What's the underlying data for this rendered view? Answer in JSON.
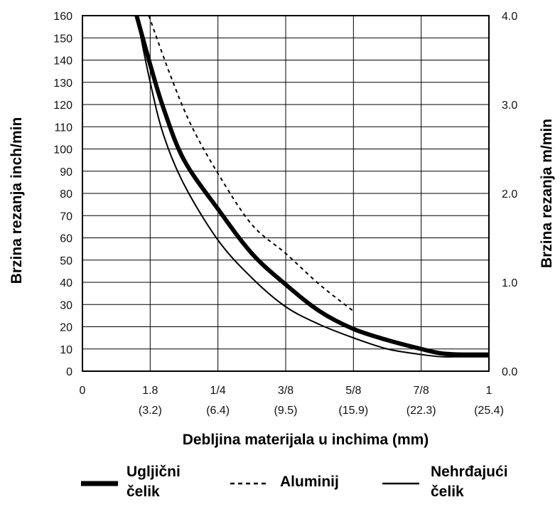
{
  "chart_data": {
    "type": "line",
    "xlabel": "Debljina materijala u inchima (mm)",
    "ylabel": "Brzina rezanja inch/min",
    "y2label": "Brzina rezanja m/min",
    "x_ticks": [
      {
        "top": "0",
        "bottom": ""
      },
      {
        "top": "1.8",
        "bottom": "(3.2)"
      },
      {
        "top": "1/4",
        "bottom": "(6.4)"
      },
      {
        "top": "3/8",
        "bottom": "(9.5)"
      },
      {
        "top": "5/8",
        "bottom": "(15.9)"
      },
      {
        "top": "7/8",
        "bottom": "(22.3)"
      },
      {
        "top": "1",
        "bottom": "(25.4)"
      }
    ],
    "ylim": [
      0,
      160
    ],
    "y_ticks": [
      "0",
      "10",
      "20",
      "30",
      "40",
      "50",
      "60",
      "70",
      "80",
      "90",
      "100",
      "110",
      "120",
      "130",
      "140",
      "150",
      "160"
    ],
    "y2lim": [
      0.0,
      4.0
    ],
    "y2_ticks": [
      "0.0",
      "1.0",
      "2.0",
      "3.0",
      "4.0"
    ],
    "grid": true,
    "legend_position": "bottom",
    "series": [
      {
        "name": "Ugljični čelik",
        "style": "thick",
        "x_index": [
          0.8,
          1.0,
          1.2,
          1.5,
          2.0,
          2.5,
          3.0,
          3.5,
          4.0,
          4.5,
          5.0,
          5.3,
          5.6,
          6.0
        ],
        "values": [
          160,
          138,
          118,
          95,
          73,
          53,
          39,
          27,
          19,
          14,
          10,
          8,
          7.5,
          7.5
        ]
      },
      {
        "name": "Aluminij",
        "style": "dashed",
        "x_index": [
          0.98,
          1.3,
          1.6,
          2.0,
          2.5,
          3.0,
          3.5,
          4.0
        ],
        "values": [
          160,
          133,
          111,
          89,
          66,
          53,
          39,
          27
        ]
      },
      {
        "name": "Nehrđajući čelik",
        "style": "thin",
        "x_index": [
          0.8,
          1.0,
          1.2,
          1.5,
          2.0,
          2.5,
          3.0,
          3.5,
          4.0,
          4.5,
          5.0,
          5.3,
          5.6,
          6.0
        ],
        "values": [
          160,
          130,
          106,
          84,
          59,
          42,
          29,
          21,
          15,
          10,
          7.5,
          6.5,
          6.5,
          6.5
        ]
      }
    ]
  },
  "legend": [
    {
      "label": "Ugljični\nčelik",
      "style": "thick"
    },
    {
      "label": "Aluminij",
      "style": "dashed"
    },
    {
      "label": "Nehrđajući\nčelik",
      "style": "thin"
    }
  ]
}
